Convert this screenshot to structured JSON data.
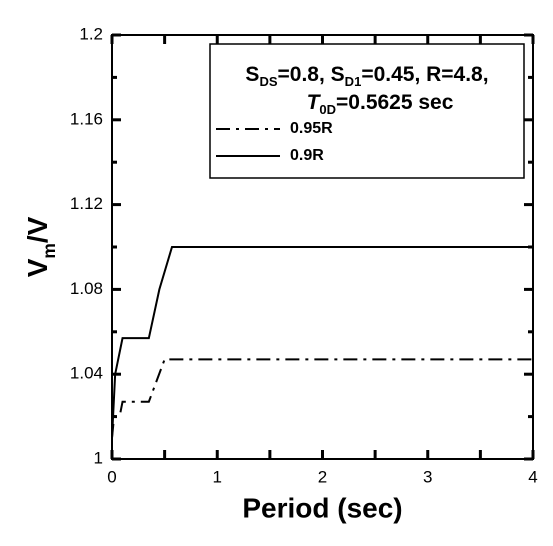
{
  "chart_data": {
    "type": "line",
    "xlabel": "Period (sec)",
    "ylabel": [
      {
        "text": "V"
      },
      {
        "text": "m",
        "sub": true
      },
      {
        "text": "/V"
      }
    ],
    "xlim": [
      0,
      4
    ],
    "ylim": [
      1,
      1.2
    ],
    "xticks": [
      0,
      1,
      2,
      3,
      4
    ],
    "xminor_ticks": [
      0.5,
      1.5,
      2.5,
      3.5
    ],
    "yticks": [
      1,
      1.04,
      1.08,
      1.12,
      1.16,
      1.2
    ],
    "yminor_ticks": [
      1.02,
      1.06,
      1.1,
      1.14,
      1.18
    ],
    "annotation": [
      [
        {
          "text": "S"
        },
        {
          "text": "DS",
          "sub": true
        },
        {
          "text": "=0.8, S"
        },
        {
          "text": "D1",
          "sub": true
        },
        {
          "text": "=0.45, R=4.8,"
        }
      ],
      [
        {
          "text": "T",
          "italic": true
        },
        {
          "text": "0D",
          "sub": true
        },
        {
          "text": "=0.5625 sec"
        }
      ]
    ],
    "legend": "upper right",
    "series": [
      {
        "name": "0.95R",
        "color": "#000000",
        "dash": "dashdot",
        "x": [
          0,
          0.02,
          0.08,
          0.1,
          0.35,
          0.5,
          4
        ],
        "values": [
          1.01,
          1.02,
          1.022,
          1.027,
          1.027,
          1.047,
          1.047
        ]
      },
      {
        "name": "0.9R",
        "color": "#000000",
        "dash": "solid",
        "x": [
          0,
          0.03,
          0.1,
          0.35,
          0.45,
          0.57,
          4
        ],
        "values": [
          1.01,
          1.04,
          1.057,
          1.057,
          1.08,
          1.1,
          1.1
        ]
      }
    ]
  }
}
